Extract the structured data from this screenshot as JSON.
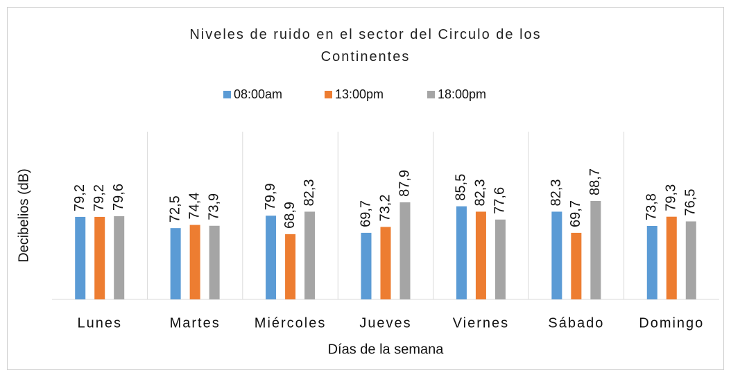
{
  "chart_data": {
    "type": "bar",
    "title": "Niveles de ruido en el sector del Circulo de los Continentes",
    "x_label": "Días de la semana",
    "y_label": "Decibelios (dB)",
    "categories": [
      "Lunes",
      "Martes",
      "Miércoles",
      "Jueves",
      "Viernes",
      "Sábado",
      "Domingo"
    ],
    "series": [
      {
        "name": "08:00am",
        "color": "#5b9bd5",
        "values": [
          79.2,
          72.5,
          79.9,
          69.7,
          85.5,
          82.3,
          73.8
        ],
        "value_labels": [
          "79,2",
          "72,5",
          "79,9",
          "69,7",
          "85,5",
          "82,3",
          "73,8"
        ]
      },
      {
        "name": "13:00pm",
        "color": "#ed7d31",
        "values": [
          79.2,
          74.4,
          68.9,
          73.2,
          82.3,
          69.7,
          79.3
        ],
        "value_labels": [
          "79,2",
          "74,4",
          "68,9",
          "73,2",
          "82,3",
          "69,7",
          "79,3"
        ]
      },
      {
        "name": "18:00pm",
        "color": "#a5a5a5",
        "values": [
          79.6,
          73.9,
          82.3,
          87.9,
          77.6,
          88.7,
          76.5
        ],
        "value_labels": [
          "79,6",
          "73,9",
          "82,3",
          "87,9",
          "77,6",
          "88,7",
          "76,5"
        ]
      }
    ],
    "ylim": [
      30,
      130
    ],
    "legend": "top"
  }
}
